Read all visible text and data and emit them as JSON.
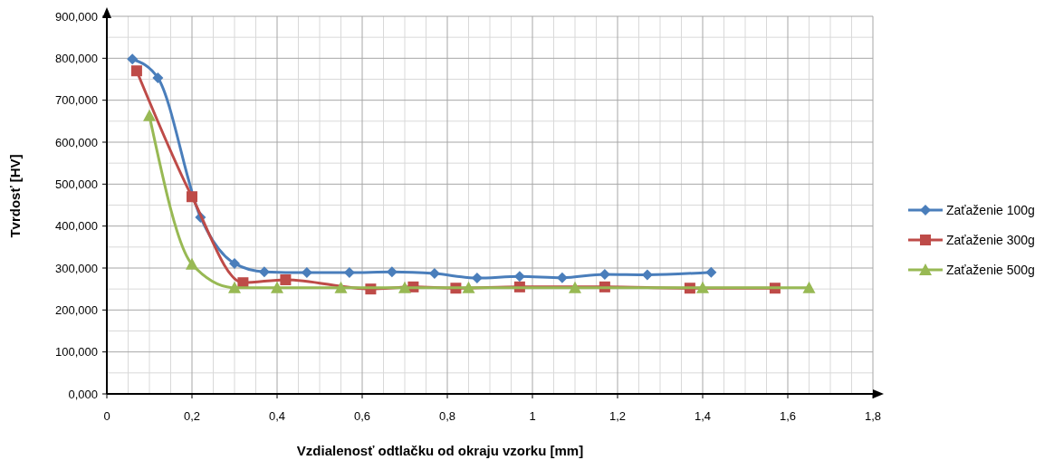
{
  "chart_data": {
    "type": "line",
    "xlabel": "Vzdialenosť odtlačku od okraju vzorku [mm]",
    "ylabel": "Tvrdosť [HV]",
    "xlim": [
      0,
      1.8
    ],
    "xticks": [
      0,
      {
        "value": 0.2,
        "label": "0,2"
      },
      {
        "value": 0.4,
        "label": "0,4"
      },
      {
        "value": 0.6,
        "label": "0,6"
      },
      {
        "value": 0.8,
        "label": "0,8"
      },
      1,
      {
        "value": 1.2,
        "label": "1,2"
      },
      {
        "value": 1.4,
        "label": "1,4"
      },
      {
        "value": 1.6,
        "label": "1,6"
      },
      {
        "value": 1.8,
        "label": "1,8"
      }
    ],
    "ylim": [
      0,
      900
    ],
    "yticks": [
      {
        "value": 0,
        "label": "0,000"
      },
      {
        "value": 100,
        "label": "100,000"
      },
      {
        "value": 200,
        "label": "200,000"
      },
      {
        "value": 300,
        "label": "300,000"
      },
      {
        "value": 400,
        "label": "400,000"
      },
      {
        "value": 500,
        "label": "500,000"
      },
      {
        "value": 600,
        "label": "600,000"
      },
      {
        "value": 700,
        "label": "700,000"
      },
      {
        "value": 800,
        "label": "800,000"
      },
      {
        "value": 900,
        "label": "900,000"
      }
    ],
    "grid": true,
    "legend": "right",
    "series": [
      {
        "name": "Zaťaženie 100g",
        "color": "#4a7ebb",
        "marker": "diamond",
        "x": [
          0.06,
          0.12,
          0.22,
          0.3,
          0.37,
          0.47,
          0.57,
          0.67,
          0.77,
          0.87,
          0.97,
          1.07,
          1.17,
          1.27,
          1.42
        ],
        "values": [
          798,
          753,
          421,
          311,
          291,
          289,
          289,
          291,
          287,
          276,
          280,
          277,
          285,
          284,
          290
        ]
      },
      {
        "name": "Zaťaženie 300g",
        "color": "#be4b48",
        "marker": "square",
        "x": [
          0.07,
          0.2,
          0.32,
          0.42,
          0.62,
          0.72,
          0.82,
          0.97,
          1.17,
          1.37,
          1.57
        ],
        "values": [
          770,
          470,
          265,
          272,
          250,
          255,
          252,
          255,
          255,
          252,
          252
        ]
      },
      {
        "name": "Zaťaženie 500g",
        "color": "#98b954",
        "marker": "triangle",
        "x": [
          0.1,
          0.2,
          0.3,
          0.4,
          0.55,
          0.7,
          0.85,
          1.1,
          1.4,
          1.65
        ],
        "values": [
          663,
          309,
          253,
          253,
          253,
          253,
          253,
          253,
          253,
          253
        ]
      }
    ]
  }
}
